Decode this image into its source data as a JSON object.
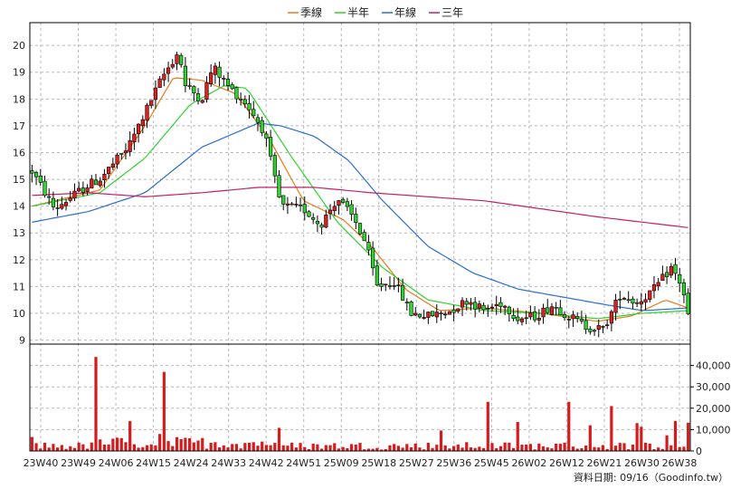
{
  "chart_data": {
    "type": "candlestick",
    "title": "",
    "legend": {
      "placement": "top-center",
      "items": [
        {
          "name": "季線",
          "color": "#e87a1e"
        },
        {
          "name": "半年",
          "color": "#2fd32f"
        },
        {
          "name": "年線",
          "color": "#2a6ed0"
        },
        {
          "name": "三年",
          "color": "#c0206a"
        }
      ]
    },
    "price_axis": {
      "ylim": [
        9,
        20
      ],
      "ticks": [
        9,
        10,
        11,
        12,
        13,
        14,
        15,
        16,
        17,
        18,
        19,
        20
      ]
    },
    "volume_axis": {
      "ylim": [
        0,
        50000
      ],
      "ticks": [
        0,
        10000,
        20000,
        30000,
        40000
      ],
      "tick_labels": [
        "0",
        "10,000",
        "20,000",
        "30,000",
        "40,000"
      ]
    },
    "x_ticks": [
      "23W40",
      "23W49",
      "24W06",
      "24W15",
      "24W24",
      "24W33",
      "24W42",
      "24W51",
      "25W09",
      "25W18",
      "25W27",
      "25W36",
      "25W45",
      "26W02",
      "26W12",
      "26W21",
      "26W30",
      "26W38"
    ],
    "grid": true,
    "colors": {
      "up": "#e02020",
      "down": "#2fd32f",
      "volume": "#d41c1c",
      "border": "#000000",
      "grid": "#b8b8b8"
    },
    "footer": "資料日期: 09/16（Goodinfo.tw）",
    "price_anchors": [
      [
        0,
        15.3
      ],
      [
        4,
        13.9
      ],
      [
        6,
        14.2
      ],
      [
        10,
        14.8
      ],
      [
        12,
        15.0
      ],
      [
        14,
        15.5
      ],
      [
        17,
        16.2
      ],
      [
        20,
        17.5
      ],
      [
        23,
        18.8
      ],
      [
        26,
        19.8
      ],
      [
        27,
        18.5
      ],
      [
        30,
        18.0
      ],
      [
        32,
        19.2
      ],
      [
        35,
        18.4
      ],
      [
        38,
        17.8
      ],
      [
        41,
        16.8
      ],
      [
        44,
        14.0
      ],
      [
        48,
        13.9
      ],
      [
        51,
        13.3
      ],
      [
        54,
        14.3
      ],
      [
        57,
        13.5
      ],
      [
        59,
        12.6
      ],
      [
        61,
        11.0
      ],
      [
        64,
        11.2
      ],
      [
        67,
        10.0
      ],
      [
        70,
        9.9
      ],
      [
        74,
        10.1
      ],
      [
        77,
        10.5
      ],
      [
        80,
        10.1
      ],
      [
        83,
        10.4
      ],
      [
        86,
        9.8
      ],
      [
        89,
        9.9
      ],
      [
        92,
        10.3
      ],
      [
        95,
        9.9
      ],
      [
        98,
        9.5
      ],
      [
        101,
        9.4
      ],
      [
        104,
        10.7
      ],
      [
        107,
        10.4
      ],
      [
        110,
        10.9
      ],
      [
        113,
        11.7
      ],
      [
        115,
        11.0
      ],
      [
        116,
        9.9
      ]
    ],
    "volume_spikes": [
      [
        15,
        44000
      ],
      [
        31,
        37000
      ],
      [
        107,
        23000
      ],
      [
        126,
        23000
      ],
      [
        136,
        21000
      ],
      [
        131,
        12000
      ]
    ],
    "ma_anchors": {
      "季線": [
        [
          0,
          14.0
        ],
        [
          12,
          14.6
        ],
        [
          20,
          17.0
        ],
        [
          25,
          18.8
        ],
        [
          30,
          18.7
        ],
        [
          36,
          18.2
        ],
        [
          42,
          16.5
        ],
        [
          48,
          14.2
        ],
        [
          55,
          13.5
        ],
        [
          60,
          12.5
        ],
        [
          66,
          10.9
        ],
        [
          72,
          10.1
        ],
        [
          80,
          10.2
        ],
        [
          90,
          10.0
        ],
        [
          100,
          9.7
        ],
        [
          106,
          9.9
        ],
        [
          112,
          10.5
        ],
        [
          116,
          10.2
        ]
      ],
      "半年": [
        [
          0,
          14.0
        ],
        [
          12,
          14.5
        ],
        [
          20,
          15.8
        ],
        [
          28,
          17.8
        ],
        [
          34,
          18.5
        ],
        [
          38,
          18.4
        ],
        [
          46,
          15.8
        ],
        [
          54,
          13.4
        ],
        [
          62,
          11.7
        ],
        [
          70,
          10.5
        ],
        [
          80,
          10.1
        ],
        [
          90,
          10.0
        ],
        [
          100,
          9.8
        ],
        [
          108,
          10.0
        ],
        [
          116,
          10.1
        ]
      ],
      "年線": [
        [
          0,
          13.4
        ],
        [
          10,
          13.8
        ],
        [
          20,
          14.5
        ],
        [
          30,
          16.2
        ],
        [
          40,
          17.1
        ],
        [
          44,
          17.0
        ],
        [
          50,
          16.6
        ],
        [
          56,
          15.7
        ],
        [
          62,
          14.2
        ],
        [
          70,
          12.5
        ],
        [
          78,
          11.5
        ],
        [
          86,
          10.9
        ],
        [
          94,
          10.6
        ],
        [
          102,
          10.3
        ],
        [
          108,
          10.1
        ],
        [
          116,
          10.2
        ]
      ],
      "三年": [
        [
          0,
          14.4
        ],
        [
          10,
          14.5
        ],
        [
          20,
          14.35
        ],
        [
          30,
          14.5
        ],
        [
          40,
          14.7
        ],
        [
          50,
          14.7
        ],
        [
          60,
          14.5
        ],
        [
          70,
          14.35
        ],
        [
          80,
          14.2
        ],
        [
          90,
          13.9
        ],
        [
          100,
          13.6
        ],
        [
          108,
          13.4
        ],
        [
          116,
          13.2
        ]
      ]
    }
  }
}
